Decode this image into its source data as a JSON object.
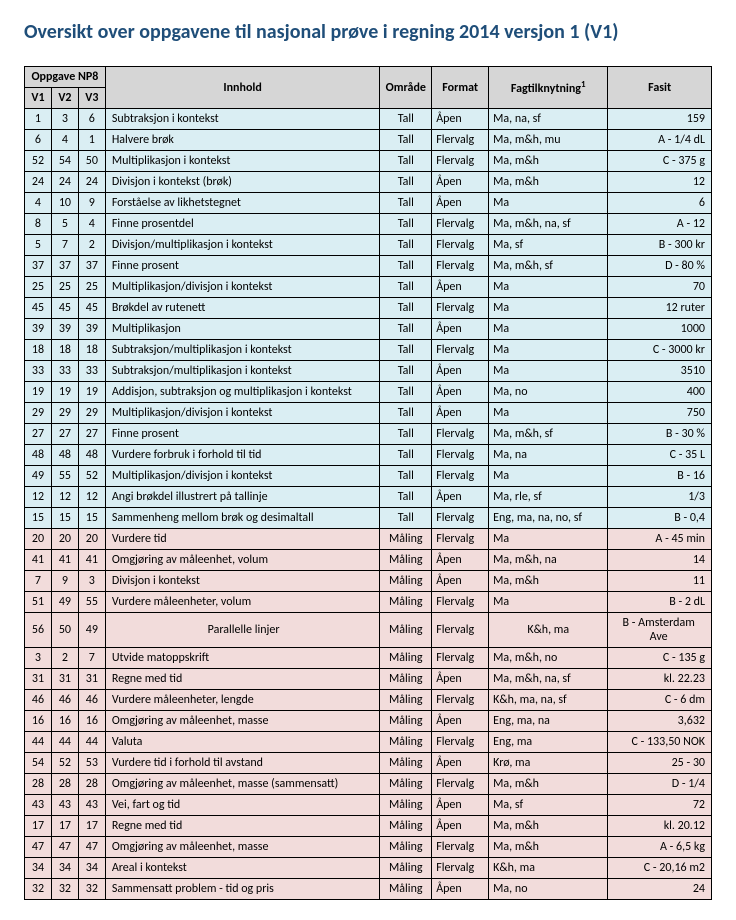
{
  "title": "Oversikt over oppgavene til nasjonal prøve i regning 2014 versjon 1 (V1)",
  "colors": {
    "accent": "#1f4e79",
    "headerBg": "#d6d6d6",
    "blueRow": "#daeef3",
    "pinkRow": "#f2dcdb",
    "border": "#000000"
  },
  "header": {
    "superGroup": "Oppgave NP8",
    "v1": "V1",
    "v2": "V2",
    "v3": "V3",
    "innhold": "Innhold",
    "omrade": "Område",
    "format": "Format",
    "fag": "Fagtilknytning",
    "fagSup": "1",
    "fasit": "Fasit"
  },
  "rows": [
    {
      "c": "blue",
      "v1": "1",
      "v2": "3",
      "v3": "6",
      "innhold": "Subtraksjon i kontekst",
      "omrade": "Tall",
      "format": "Åpen",
      "fag": "Ma, na, sf",
      "fasit": "159"
    },
    {
      "c": "blue",
      "v1": "6",
      "v2": "4",
      "v3": "1",
      "innhold": "Halvere brøk",
      "omrade": "Tall",
      "format": "Flervalg",
      "fag": "Ma, m&h, mu",
      "fasit": "A - 1/4 dL"
    },
    {
      "c": "blue",
      "v1": "52",
      "v2": "54",
      "v3": "50",
      "innhold": "Multiplikasjon i kontekst",
      "omrade": "Tall",
      "format": "Flervalg",
      "fag": "Ma, m&h",
      "fasit": "C - 375 g"
    },
    {
      "c": "blue",
      "v1": "24",
      "v2": "24",
      "v3": "24",
      "innhold": "Divisjon i kontekst (brøk)",
      "omrade": "Tall",
      "format": "Åpen",
      "fag": "Ma, m&h",
      "fasit": "12"
    },
    {
      "c": "blue",
      "v1": "4",
      "v2": "10",
      "v3": "9",
      "innhold": "Forståelse av likhetstegnet",
      "omrade": "Tall",
      "format": "Åpen",
      "fag": "Ma",
      "fasit": "6"
    },
    {
      "c": "blue",
      "v1": "8",
      "v2": "5",
      "v3": "4",
      "innhold": "Finne prosentdel",
      "omrade": "Tall",
      "format": "Flervalg",
      "fag": "Ma, m&h, na, sf",
      "fasit": "A - 12"
    },
    {
      "c": "blue",
      "v1": "5",
      "v2": "7",
      "v3": "2",
      "innhold": "Divisjon/multiplikasjon i kontekst",
      "omrade": "Tall",
      "format": "Flervalg",
      "fag": "Ma, sf",
      "fasit": "B - 300 kr"
    },
    {
      "c": "blue",
      "v1": "37",
      "v2": "37",
      "v3": "37",
      "innhold": "Finne prosent",
      "omrade": "Tall",
      "format": "Flervalg",
      "fag": "Ma, m&h, sf",
      "fasit": "D - 80 %"
    },
    {
      "c": "blue",
      "v1": "25",
      "v2": "25",
      "v3": "25",
      "innhold": "Multiplikasjon/divisjon i kontekst",
      "omrade": "Tall",
      "format": "Åpen",
      "fag": "Ma",
      "fasit": "70"
    },
    {
      "c": "blue",
      "v1": "45",
      "v2": "45",
      "v3": "45",
      "innhold": "Brøkdel av rutenett",
      "omrade": "Tall",
      "format": "Flervalg",
      "fag": "Ma",
      "fasit": "12 ruter"
    },
    {
      "c": "blue",
      "v1": "39",
      "v2": "39",
      "v3": "39",
      "innhold": "Multiplikasjon",
      "omrade": "Tall",
      "format": "Åpen",
      "fag": "Ma",
      "fasit": "1000"
    },
    {
      "c": "blue",
      "v1": "18",
      "v2": "18",
      "v3": "18",
      "innhold": "Subtraksjon/multiplikasjon i kontekst",
      "omrade": "Tall",
      "format": "Flervalg",
      "fag": "Ma",
      "fasit": "C - 3000 kr"
    },
    {
      "c": "blue",
      "v1": "33",
      "v2": "33",
      "v3": "33",
      "innhold": "Subtraksjon/multiplikasjon i kontekst",
      "omrade": "Tall",
      "format": "Åpen",
      "fag": "Ma",
      "fasit": "3510"
    },
    {
      "c": "blue",
      "v1": "19",
      "v2": "19",
      "v3": "19",
      "innhold": "Addisjon, subtraksjon og multiplikasjon i kontekst",
      "omrade": "Tall",
      "format": "Åpen",
      "fag": "Ma, no",
      "fasit": "400"
    },
    {
      "c": "blue",
      "v1": "29",
      "v2": "29",
      "v3": "29",
      "innhold": "Multiplikasjon/divisjon i kontekst",
      "omrade": "Tall",
      "format": "Åpen",
      "fag": "Ma",
      "fasit": "750"
    },
    {
      "c": "blue",
      "v1": "27",
      "v2": "27",
      "v3": "27",
      "innhold": "Finne prosent",
      "omrade": "Tall",
      "format": "Flervalg",
      "fag": "Ma, m&h, sf",
      "fasit": "B - 30 %"
    },
    {
      "c": "blue",
      "v1": "48",
      "v2": "48",
      "v3": "48",
      "innhold": "Vurdere forbruk i forhold til tid",
      "omrade": "Tall",
      "format": "Flervalg",
      "fag": "Ma, na",
      "fasit": "C - 35 L"
    },
    {
      "c": "blue",
      "v1": "49",
      "v2": "55",
      "v3": "52",
      "innhold": "Multiplikasjon/divisjon i kontekst",
      "omrade": "Tall",
      "format": "Flervalg",
      "fag": "Ma",
      "fasit": "B - 16"
    },
    {
      "c": "blue",
      "v1": "12",
      "v2": "12",
      "v3": "12",
      "innhold": "Angi brøkdel illustrert på tallinje",
      "omrade": "Tall",
      "format": "Åpen",
      "fag": "Ma, rle, sf",
      "fasit": "1/3"
    },
    {
      "c": "blue",
      "v1": "15",
      "v2": "15",
      "v3": "15",
      "innhold": "Sammenheng mellom brøk og desimaltall",
      "omrade": "Tall",
      "format": "Flervalg",
      "fag": "Eng, ma, na, no, sf",
      "fasit": "B - 0,4"
    },
    {
      "c": "pink",
      "v1": "20",
      "v2": "20",
      "v3": "20",
      "innhold": "Vurdere tid",
      "omrade": "Måling",
      "format": "Flervalg",
      "fag": "Ma",
      "fasit": "A - 45 min"
    },
    {
      "c": "pink",
      "v1": "41",
      "v2": "41",
      "v3": "41",
      "innhold": "Omgjøring av måleenhet, volum",
      "omrade": "Måling",
      "format": "Åpen",
      "fag": "Ma, m&h, na",
      "fasit": "14"
    },
    {
      "c": "pink",
      "v1": "7",
      "v2": "9",
      "v3": "3",
      "innhold": "Divisjon i kontekst",
      "omrade": "Måling",
      "format": "Åpen",
      "fag": "Ma, m&h",
      "fasit": "11"
    },
    {
      "c": "pink",
      "v1": "51",
      "v2": "49",
      "v3": "55",
      "innhold": "Vurdere måleenheter, volum",
      "omrade": "Måling",
      "format": "Flervalg",
      "fag": "Ma",
      "fasit": "B - 2 dL"
    },
    {
      "c": "pink",
      "v1": "56",
      "v2": "50",
      "v3": "49",
      "innhold": "Parallelle linjer",
      "innholdCenter": true,
      "omrade": "Måling",
      "format": "Flervalg",
      "fag": "K&h, ma",
      "fagCenter": true,
      "fasit": "B - Amsterdam Ave",
      "fasitCenter": true
    },
    {
      "c": "pink",
      "v1": "3",
      "v2": "2",
      "v3": "7",
      "innhold": "Utvide matoppskrift",
      "omrade": "Måling",
      "format": "Flervalg",
      "fag": "Ma, m&h, no",
      "fasit": "C - 135 g"
    },
    {
      "c": "pink",
      "v1": "31",
      "v2": "31",
      "v3": "31",
      "innhold": "Regne med tid",
      "omrade": "Måling",
      "format": "Åpen",
      "fag": "Ma, m&h, na, sf",
      "fasit": "kl. 22.23"
    },
    {
      "c": "pink",
      "v1": "46",
      "v2": "46",
      "v3": "46",
      "innhold": "Vurdere måleenheter, lengde",
      "omrade": "Måling",
      "format": "Flervalg",
      "fag": "K&h, ma, na, sf",
      "fasit": "C - 6 dm"
    },
    {
      "c": "pink",
      "v1": "16",
      "v2": "16",
      "v3": "16",
      "innhold": "Omgjøring av måleenhet, masse",
      "omrade": "Måling",
      "format": "Åpen",
      "fag": "Eng, ma, na",
      "fasit": "3,632"
    },
    {
      "c": "pink",
      "v1": "44",
      "v2": "44",
      "v3": "44",
      "innhold": "Valuta",
      "omrade": "Måling",
      "format": "Flervalg",
      "fag": "Eng, ma",
      "fasit": "C - 133,50 NOK"
    },
    {
      "c": "pink",
      "v1": "54",
      "v2": "52",
      "v3": "53",
      "innhold": "Vurdere tid i forhold til avstand",
      "omrade": "Måling",
      "format": "Åpen",
      "fag": "Krø, ma",
      "fasit": "25 - 30"
    },
    {
      "c": "pink",
      "v1": "28",
      "v2": "28",
      "v3": "28",
      "innhold": "Omgjøring av måleenhet, masse (sammensatt)",
      "omrade": "Måling",
      "format": "Flervalg",
      "fag": "Ma, m&h",
      "fasit": "D - 1/4"
    },
    {
      "c": "pink",
      "v1": "43",
      "v2": "43",
      "v3": "43",
      "innhold": "Vei, fart og tid",
      "omrade": "Måling",
      "format": "Åpen",
      "fag": "Ma, sf",
      "fasit": "72"
    },
    {
      "c": "pink",
      "v1": "17",
      "v2": "17",
      "v3": "17",
      "innhold": "Regne med tid",
      "omrade": "Måling",
      "format": "Åpen",
      "fag": "Ma, m&h",
      "fasit": "kl. 20.12"
    },
    {
      "c": "pink",
      "v1": "47",
      "v2": "47",
      "v3": "47",
      "innhold": "Omgjøring av måleenhet, masse",
      "omrade": "Måling",
      "format": "Flervalg",
      "fag": "Ma, m&h",
      "fasit": "A - 6,5 kg"
    },
    {
      "c": "pink",
      "v1": "34",
      "v2": "34",
      "v3": "34",
      "innhold": "Areal i kontekst",
      "omrade": "Måling",
      "format": "Flervalg",
      "fag": "K&h, ma",
      "fasit": "C - 20,16 m2"
    },
    {
      "c": "pink",
      "v1": "32",
      "v2": "32",
      "v3": "32",
      "innhold": "Sammensatt problem - tid og pris",
      "omrade": "Måling",
      "format": "Åpen",
      "fag": "Ma, no",
      "fasit": "24"
    }
  ]
}
